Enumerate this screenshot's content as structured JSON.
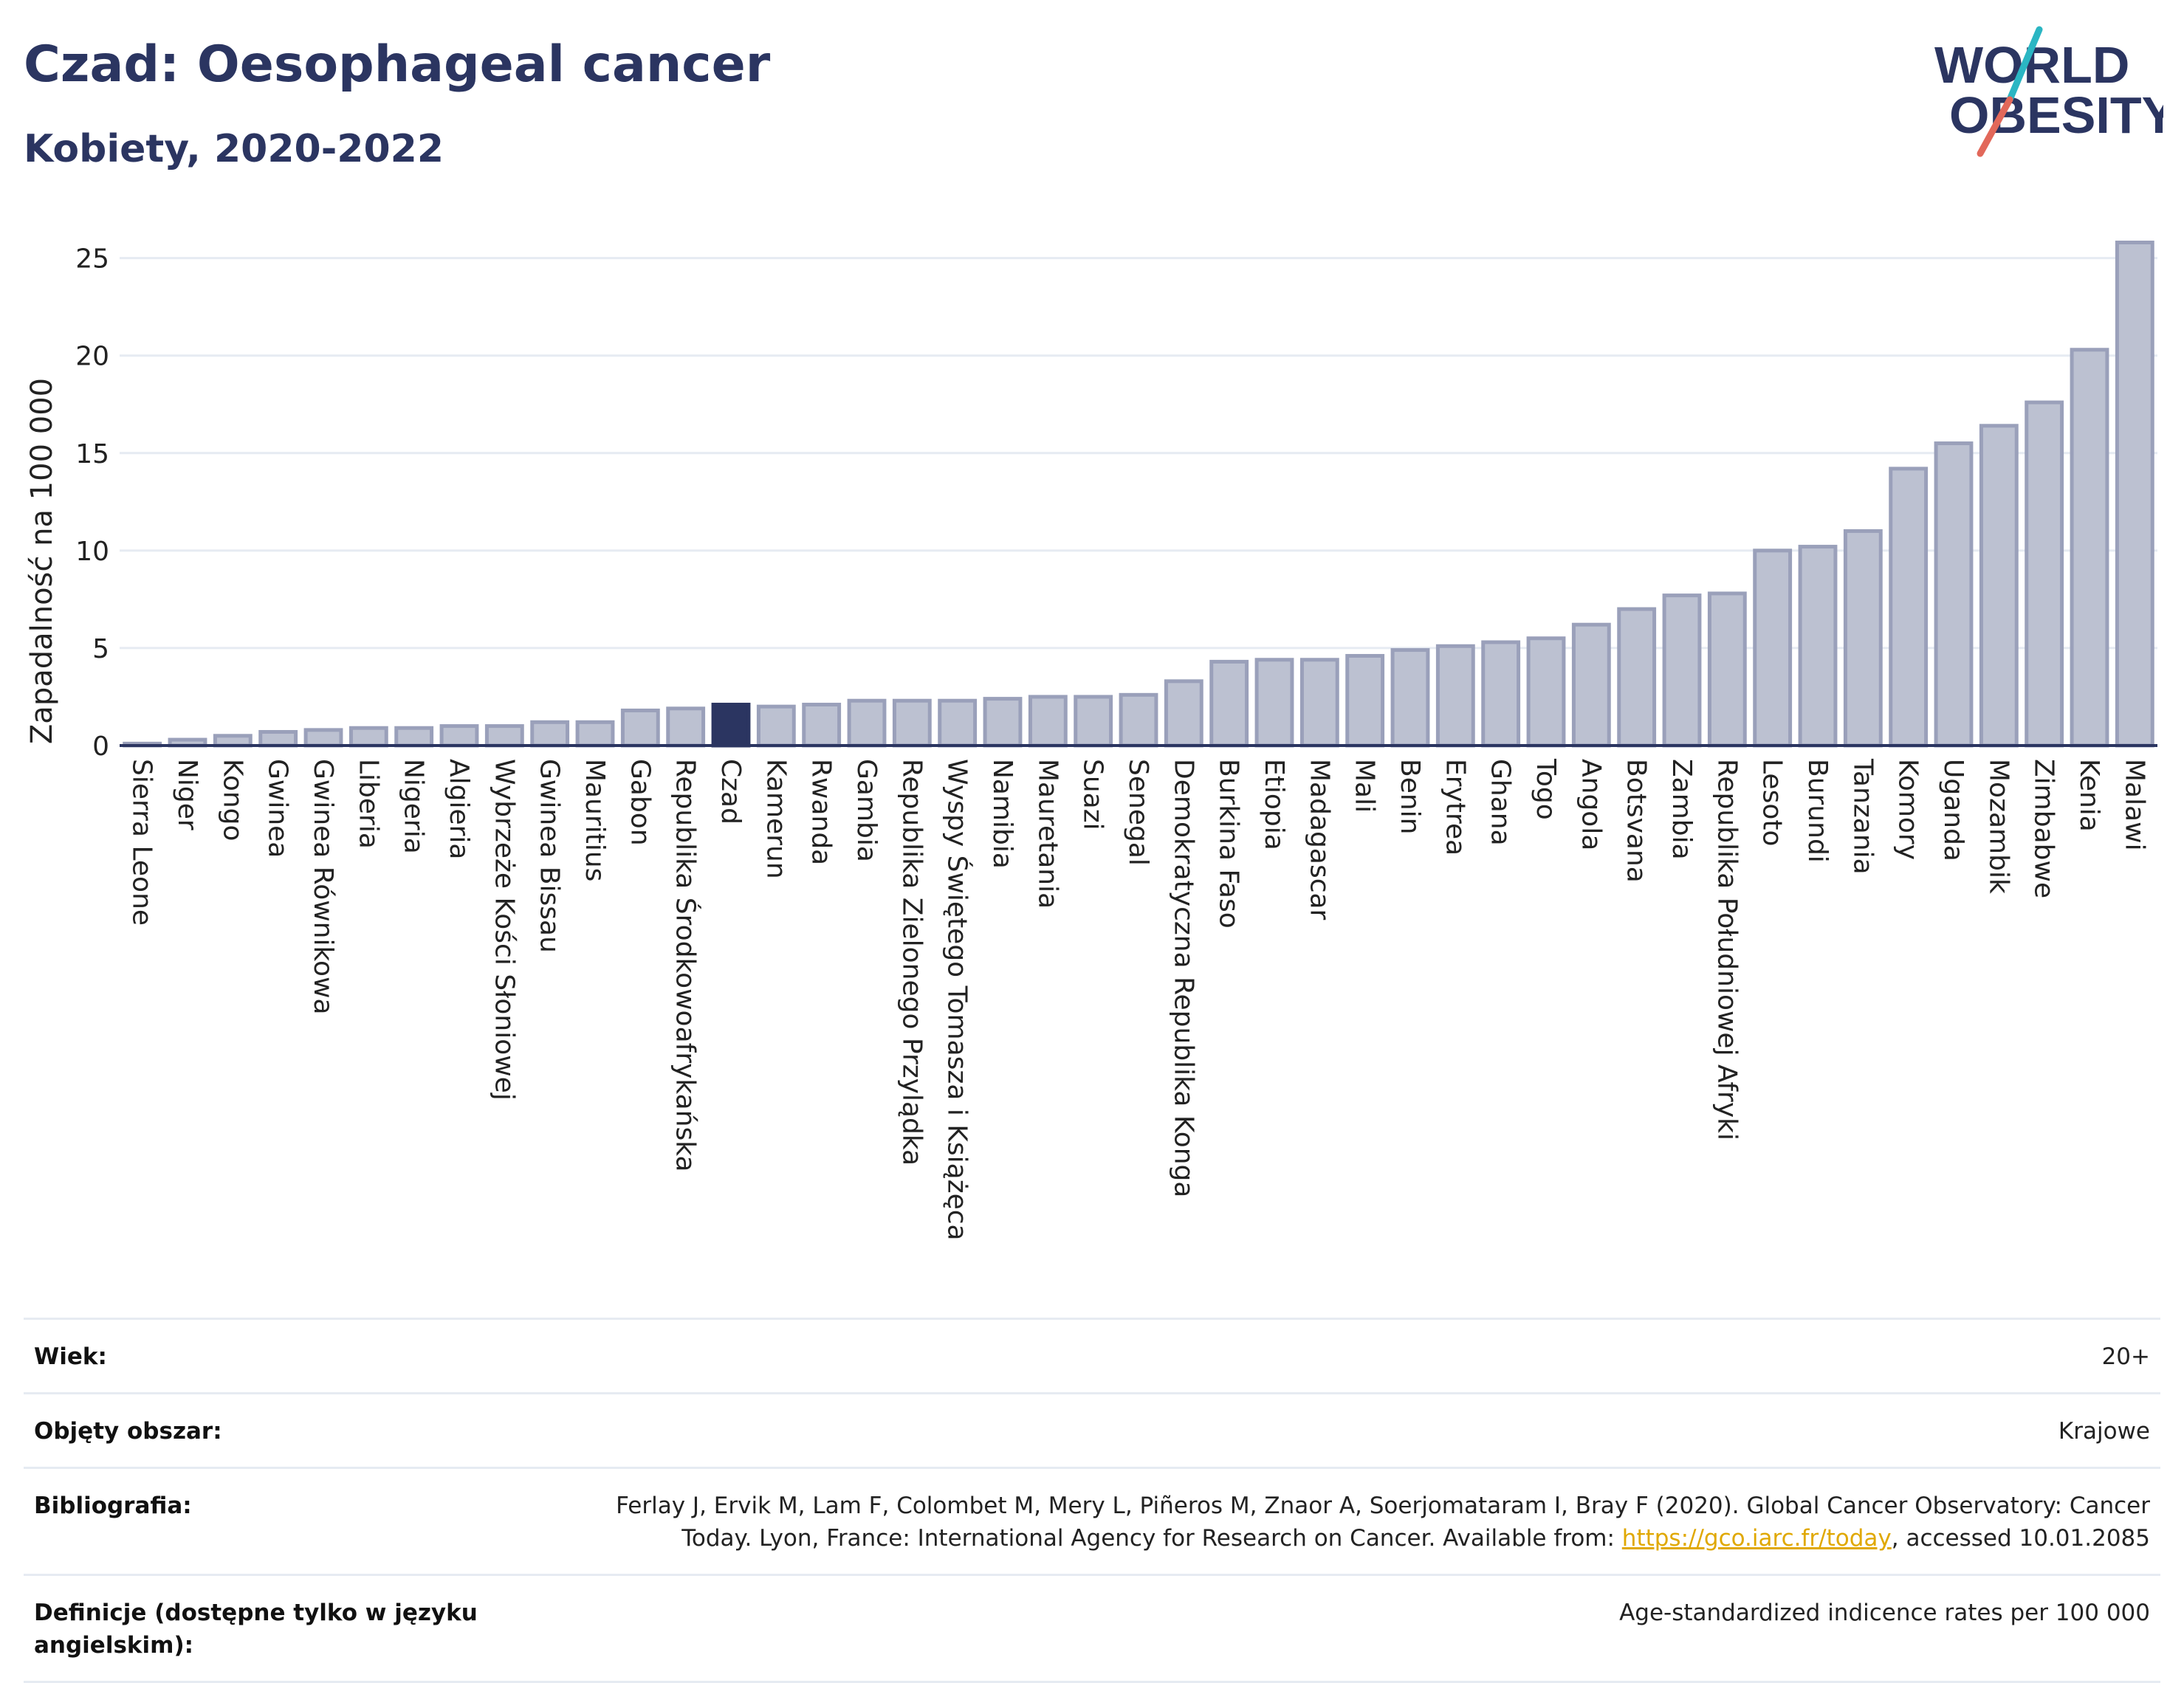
{
  "header": {
    "title": "Czad: Oesophageal cancer",
    "subtitle": "Kobiety, 2020-2022"
  },
  "logo": {
    "line1": "WORLD",
    "line2": "OBESITY",
    "colors": {
      "text": "#2b3561",
      "slash_top": "#2bb6c3",
      "slash_bottom": "#e2685a"
    }
  },
  "colors": {
    "bar": "#bcc1d1",
    "bar_stroke": "#9aa0ba",
    "highlight": "#2b3561",
    "axis": "#2b3561",
    "grid": "#e6ebf2",
    "link": "#e0a800"
  },
  "chart_data": {
    "type": "bar",
    "title": "",
    "ylabel": "Zapadalność na 100 000",
    "ylim": [
      0,
      26.5
    ],
    "yticks": [
      0,
      5,
      10,
      15,
      20,
      25
    ],
    "grid": true,
    "highlight": "Czad",
    "categories": [
      "Sierra Leone",
      "Niger",
      "Kongo",
      "Gwinea",
      "Gwinea Równikowa",
      "Liberia",
      "Nigeria",
      "Algieria",
      "Wybrzeże Kości Słoniowej",
      "Gwinea Bissau",
      "Mauritius",
      "Gabon",
      "Republika Środkowoafrykańska",
      "Czad",
      "Kamerun",
      "Rwanda",
      "Gambia",
      "Republika Zielonego Przylądka",
      "Wyspy Świętego Tomasza i Książęca",
      "Namibia",
      "Mauretania",
      "Suazi",
      "Senegal",
      "Demokratyczna Republika Konga",
      "Burkina Faso",
      "Etiopia",
      "Madagascar",
      "Mali",
      "Benin",
      "Erytrea",
      "Ghana",
      "Togo",
      "Angola",
      "Botsvana",
      "Zambia",
      "Republika Południowej Afryki",
      "Lesoto",
      "Burundi",
      "Tanzania",
      "Komory",
      "Uganda",
      "Mozambik",
      "Zimbabwe",
      "Kenia",
      "Malawi"
    ],
    "values": [
      0.1,
      0.3,
      0.5,
      0.7,
      0.8,
      0.9,
      0.9,
      1.0,
      1.0,
      1.2,
      1.2,
      1.8,
      1.9,
      2.1,
      2.0,
      2.1,
      2.3,
      2.3,
      2.3,
      2.4,
      2.5,
      2.5,
      2.6,
      3.3,
      4.3,
      4.4,
      4.4,
      4.6,
      4.9,
      5.1,
      5.3,
      5.5,
      6.2,
      7.0,
      7.7,
      7.8,
      10.0,
      10.2,
      11.0,
      14.2,
      15.5,
      16.4,
      17.6,
      20.3,
      25.8
    ]
  },
  "meta": [
    {
      "key": "Wiek:",
      "value": "20+"
    },
    {
      "key": "Objęty obszar:",
      "value": "Krajowe"
    },
    {
      "key": "Bibliografia:",
      "value_pre": "Ferlay J, Ervik M, Lam F, Colombet M, Mery L, Piñeros M, Znaor A, Soerjomataram I, Bray F (2020). Global Cancer Observatory: Cancer Today. Lyon, France: International Agency for Research on Cancer. Available from: ",
      "link": "https://gco.iarc.fr/today",
      "value_post": ", accessed 10.01.2085"
    },
    {
      "key": "Definicje (dostępne tylko w języku angielskim):",
      "value": "Age-standardized indicence rates per 100 000"
    }
  ]
}
